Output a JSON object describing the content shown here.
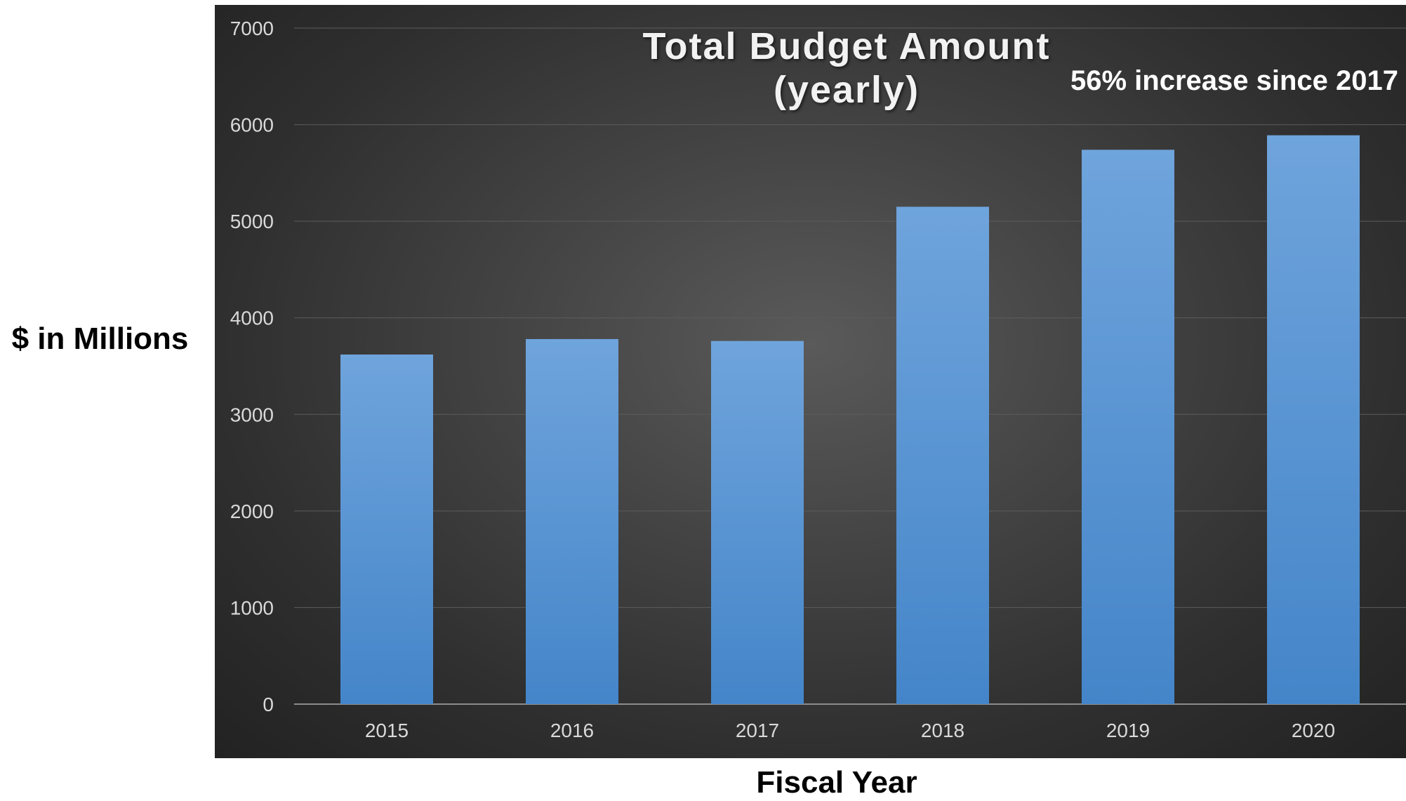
{
  "chart_data": {
    "type": "bar",
    "title": "Total Budget Amount (yearly)",
    "annotation": "56% increase since 2017",
    "xlabel": "Fiscal Year",
    "ylabel": "$ in Millions",
    "categories": [
      "2015",
      "2016",
      "2017",
      "2018",
      "2019",
      "2020"
    ],
    "values": [
      3620,
      3780,
      3760,
      5150,
      5740,
      5890
    ],
    "ylim": [
      0,
      7000
    ],
    "yticks": [
      0,
      1000,
      2000,
      3000,
      4000,
      5000,
      6000,
      7000
    ],
    "grid": true,
    "legend": "none",
    "colors": {
      "bar_top": "#6fa4dc",
      "bar_bottom": "#4485c9",
      "background": "#3a3a3a",
      "gridline": "#5c5c5c",
      "axis_text": "#d9d9d9"
    }
  }
}
